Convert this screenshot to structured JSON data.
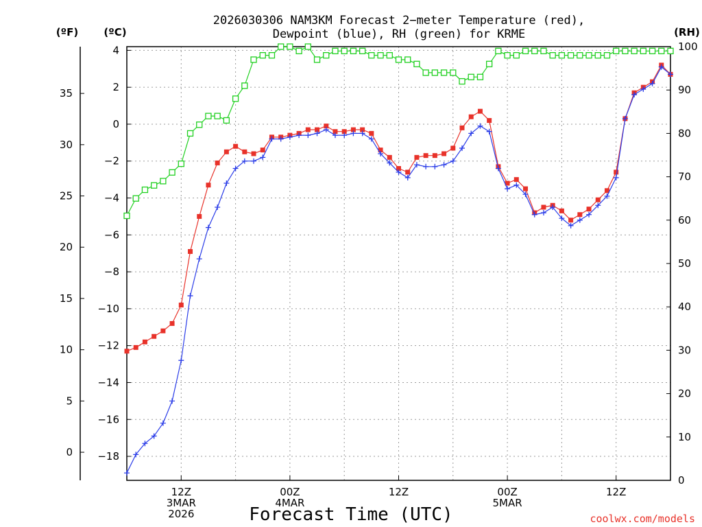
{
  "chart_data": {
    "type": "line",
    "title_line1": "2026030306 NAM3KM Forecast 2−meter Temperature (red),",
    "title_line2": "Dewpoint (blue), RH (green) for KRME",
    "unit_f": "(ºF)",
    "unit_c": "(ºC)",
    "unit_rh": "(RH)",
    "xlabel": "Forecast Time (UTC)",
    "credit": "coolwx.com/models",
    "x_hours_range": [
      6,
      66
    ],
    "ylim_c": [
      -19.3,
      4.2
    ],
    "ylim_rh": [
      0,
      100
    ],
    "f_ticks": [
      0,
      5,
      10,
      15,
      20,
      25,
      30,
      35
    ],
    "c_ticks": [
      -18,
      -16,
      -14,
      -12,
      -10,
      -8,
      -6,
      -4,
      -2,
      0,
      2,
      4
    ],
    "rh_ticks": [
      0,
      10,
      20,
      30,
      40,
      50,
      60,
      70,
      80,
      90,
      100
    ],
    "x_ticks": [
      {
        "hour": 12,
        "lines": [
          "12Z",
          "3MAR",
          "2026"
        ]
      },
      {
        "hour": 24,
        "lines": [
          "00Z",
          "4MAR"
        ]
      },
      {
        "hour": 36,
        "lines": [
          "12Z"
        ]
      },
      {
        "hour": 48,
        "lines": [
          "00Z",
          "5MAR"
        ]
      },
      {
        "hour": 60,
        "lines": [
          "12Z"
        ]
      }
    ],
    "hours": [
      6,
      7,
      8,
      9,
      10,
      11,
      12,
      13,
      14,
      15,
      16,
      17,
      18,
      19,
      20,
      21,
      22,
      23,
      24,
      25,
      26,
      27,
      28,
      29,
      30,
      31,
      32,
      33,
      34,
      35,
      36,
      37,
      38,
      39,
      40,
      41,
      42,
      43,
      44,
      45,
      46,
      47,
      48,
      49,
      50,
      51,
      52,
      53,
      54,
      55,
      56,
      57,
      58,
      59,
      60,
      61,
      62,
      63,
      64,
      65,
      66
    ],
    "series": [
      {
        "name": "Temperature",
        "unit": "C",
        "color": "#e8322a",
        "marker": "filled-square",
        "values": [
          -12.3,
          -12.1,
          -11.8,
          -11.5,
          -11.2,
          -10.8,
          -9.8,
          -6.9,
          -5.0,
          -3.3,
          -2.1,
          -1.5,
          -1.2,
          -1.5,
          -1.6,
          -1.4,
          -0.7,
          -0.7,
          -0.6,
          -0.5,
          -0.3,
          -0.3,
          -0.1,
          -0.4,
          -0.4,
          -0.3,
          -0.3,
          -0.5,
          -1.4,
          -1.8,
          -2.4,
          -2.6,
          -1.8,
          -1.7,
          -1.7,
          -1.6,
          -1.3,
          -0.2,
          0.4,
          0.7,
          0.2,
          -2.3,
          -3.2,
          -3.0,
          -3.5,
          -4.8,
          -4.5,
          -4.4,
          -4.7,
          -5.2,
          -4.9,
          -4.6,
          -4.1,
          -3.6,
          -2.6,
          0.3,
          1.7,
          2.0,
          2.3,
          3.2,
          2.7
        ]
      },
      {
        "name": "Dewpoint",
        "unit": "C",
        "color": "#2a3ce8",
        "marker": "plus",
        "values": [
          -18.9,
          -17.9,
          -17.3,
          -16.9,
          -16.2,
          -15.0,
          -12.8,
          -9.3,
          -7.3,
          -5.6,
          -4.5,
          -3.2,
          -2.4,
          -2.0,
          -2.0,
          -1.8,
          -0.8,
          -0.8,
          -0.7,
          -0.6,
          -0.6,
          -0.5,
          -0.3,
          -0.6,
          -0.6,
          -0.5,
          -0.5,
          -0.8,
          -1.6,
          -2.1,
          -2.6,
          -2.9,
          -2.2,
          -2.3,
          -2.3,
          -2.2,
          -2.0,
          -1.3,
          -0.5,
          -0.1,
          -0.4,
          -2.4,
          -3.5,
          -3.3,
          -3.8,
          -4.9,
          -4.8,
          -4.5,
          -5.1,
          -5.5,
          -5.2,
          -4.9,
          -4.4,
          -3.9,
          -2.9,
          0.3,
          1.6,
          1.9,
          2.2,
          3.1,
          2.7
        ]
      },
      {
        "name": "Relative Humidity",
        "unit": "%",
        "color": "#20d020",
        "marker": "open-square",
        "values": [
          61,
          65,
          67,
          68,
          69,
          71,
          73,
          80,
          82,
          84,
          84,
          83,
          88,
          91,
          97,
          98,
          98,
          100,
          100,
          99,
          100,
          97,
          98,
          99,
          99,
          99,
          99,
          98,
          98,
          98,
          97,
          97,
          96,
          94,
          94,
          94,
          94,
          92,
          93,
          93,
          96,
          99,
          98,
          98,
          99,
          99,
          99,
          98,
          98,
          98,
          98,
          98,
          98,
          98,
          99,
          99,
          99,
          99,
          99,
          99,
          99
        ]
      }
    ]
  }
}
